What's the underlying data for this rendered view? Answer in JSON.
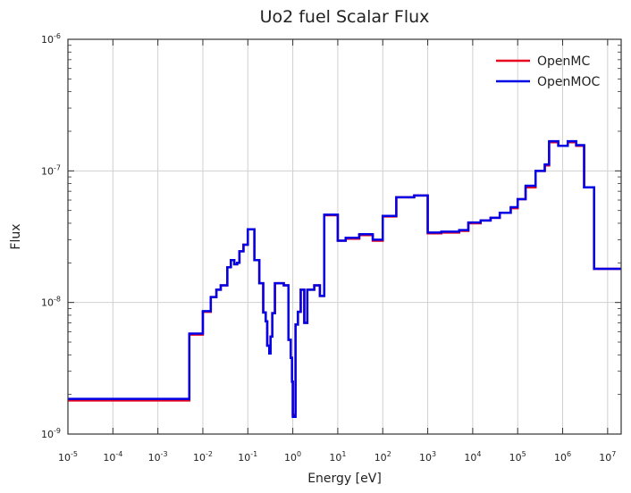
{
  "chart_data": {
    "type": "line",
    "title": "Uo2 fuel Scalar Flux",
    "xlabel": "Energy [eV]",
    "ylabel": "Flux",
    "xscale": "log",
    "yscale": "log",
    "xlim": [
      1e-05,
      20000000.0
    ],
    "ylim": [
      1e-09,
      1e-06
    ],
    "grid": true,
    "legend_position": "top-right",
    "x_ticks": [
      {
        "base": "10",
        "exp": "-5"
      },
      {
        "base": "10",
        "exp": "-4"
      },
      {
        "base": "10",
        "exp": "-3"
      },
      {
        "base": "10",
        "exp": "-2"
      },
      {
        "base": "10",
        "exp": "-1"
      },
      {
        "base": "10",
        "exp": "0"
      },
      {
        "base": "10",
        "exp": "1"
      },
      {
        "base": "10",
        "exp": "2"
      },
      {
        "base": "10",
        "exp": "3"
      },
      {
        "base": "10",
        "exp": "4"
      },
      {
        "base": "10",
        "exp": "5"
      },
      {
        "base": "10",
        "exp": "6"
      },
      {
        "base": "10",
        "exp": "7"
      }
    ],
    "y_ticks": [
      {
        "base": "10",
        "exp": "-6"
      },
      {
        "base": "10",
        "exp": "-7"
      },
      {
        "base": "10",
        "exp": "-8"
      },
      {
        "base": "10",
        "exp": "-9"
      }
    ],
    "series": [
      {
        "name": "OpenMC",
        "color": "#e8001c",
        "step": [
          [
            1e-05,
            1.8e-09
          ],
          [
            0.005,
            5.7e-09
          ],
          [
            0.01,
            8.5e-09
          ],
          [
            0.015,
            1.1e-08
          ],
          [
            0.02,
            1.25e-08
          ],
          [
            0.025,
            1.35e-08
          ],
          [
            0.035,
            1.85e-08
          ],
          [
            0.042,
            2.1e-08
          ],
          [
            0.05,
            1.95e-08
          ],
          [
            0.058,
            2e-08
          ],
          [
            0.065,
            2.45e-08
          ],
          [
            0.08,
            2.75e-08
          ],
          [
            0.1,
            3.6e-08
          ],
          [
            0.14,
            2.1e-08
          ],
          [
            0.18,
            1.4e-08
          ],
          [
            0.22,
            8.4e-09
          ],
          [
            0.25,
            7.2e-09
          ],
          [
            0.27,
            4.7e-09
          ],
          [
            0.3,
            4.1e-09
          ],
          [
            0.32,
            5.5e-09
          ],
          [
            0.35,
            8.3e-09
          ],
          [
            0.4,
            1.4e-08
          ],
          [
            0.63,
            1.35e-08
          ],
          [
            0.8,
            5.2e-09
          ],
          [
            0.9,
            3.8e-09
          ],
          [
            0.96,
            2.5e-09
          ],
          [
            1.0,
            1.4e-09
          ],
          [
            1.15,
            6.8e-09
          ],
          [
            1.3,
            8.5e-09
          ],
          [
            1.5,
            1.25e-08
          ],
          [
            1.8,
            7e-09
          ],
          [
            2.1,
            1.25e-08
          ],
          [
            3.0,
            1.35e-08
          ],
          [
            4.0,
            1.12e-08
          ],
          [
            5.0,
            4.6e-08
          ],
          [
            10,
            2.95e-08
          ],
          [
            15,
            3.05e-08
          ],
          [
            30,
            3.25e-08
          ],
          [
            60,
            2.95e-08
          ],
          [
            100,
            4.5e-08
          ],
          [
            200,
            6.3e-08
          ],
          [
            500,
            6.5e-08
          ],
          [
            1000,
            3.35e-08
          ],
          [
            2000,
            3.4e-08
          ],
          [
            5000,
            3.5e-08
          ],
          [
            8000,
            4e-08
          ],
          [
            15000,
            4.2e-08
          ],
          [
            25000,
            4.4e-08
          ],
          [
            40000,
            4.8e-08
          ],
          [
            70000,
            5.2e-08
          ],
          [
            100000,
            6.1e-08
          ],
          [
            150000,
            7.5e-08
          ],
          [
            250000,
            1e-07
          ],
          [
            400000,
            1.1e-07
          ],
          [
            500000,
            1.65e-07
          ],
          [
            800000,
            1.55e-07
          ],
          [
            1300000,
            1.65e-07
          ],
          [
            2000000,
            1.55e-07
          ],
          [
            3000000,
            7.5e-08
          ],
          [
            5000000,
            1.8e-08
          ],
          [
            20000000,
            1.8e-08
          ]
        ]
      },
      {
        "name": "OpenMOC",
        "color": "#0000e6",
        "step": [
          [
            1e-05,
            1.85e-09
          ],
          [
            0.005,
            5.8e-09
          ],
          [
            0.01,
            8.6e-09
          ],
          [
            0.015,
            1.1e-08
          ],
          [
            0.02,
            1.25e-08
          ],
          [
            0.025,
            1.35e-08
          ],
          [
            0.035,
            1.85e-08
          ],
          [
            0.042,
            2.1e-08
          ],
          [
            0.05,
            1.95e-08
          ],
          [
            0.058,
            2e-08
          ],
          [
            0.065,
            2.45e-08
          ],
          [
            0.08,
            2.75e-08
          ],
          [
            0.1,
            3.6e-08
          ],
          [
            0.14,
            2.1e-08
          ],
          [
            0.18,
            1.4e-08
          ],
          [
            0.22,
            8.4e-09
          ],
          [
            0.25,
            7.2e-09
          ],
          [
            0.27,
            4.7e-09
          ],
          [
            0.3,
            4.1e-09
          ],
          [
            0.32,
            5.5e-09
          ],
          [
            0.35,
            8.3e-09
          ],
          [
            0.4,
            1.4e-08
          ],
          [
            0.63,
            1.35e-08
          ],
          [
            0.8,
            5.2e-09
          ],
          [
            0.9,
            3.8e-09
          ],
          [
            0.96,
            2.5e-09
          ],
          [
            1.0,
            1.35e-09
          ],
          [
            1.15,
            6.8e-09
          ],
          [
            1.3,
            8.5e-09
          ],
          [
            1.5,
            1.25e-08
          ],
          [
            1.8,
            7e-09
          ],
          [
            2.1,
            1.25e-08
          ],
          [
            3.0,
            1.35e-08
          ],
          [
            4.0,
            1.12e-08
          ],
          [
            5.0,
            4.65e-08
          ],
          [
            10,
            2.95e-08
          ],
          [
            15,
            3.1e-08
          ],
          [
            30,
            3.3e-08
          ],
          [
            60,
            3e-08
          ],
          [
            100,
            4.55e-08
          ],
          [
            200,
            6.3e-08
          ],
          [
            500,
            6.5e-08
          ],
          [
            1000,
            3.4e-08
          ],
          [
            2000,
            3.45e-08
          ],
          [
            5000,
            3.55e-08
          ],
          [
            8000,
            4.05e-08
          ],
          [
            15000,
            4.2e-08
          ],
          [
            25000,
            4.4e-08
          ],
          [
            40000,
            4.8e-08
          ],
          [
            70000,
            5.3e-08
          ],
          [
            100000,
            6.1e-08
          ],
          [
            150000,
            7.7e-08
          ],
          [
            250000,
            1e-07
          ],
          [
            400000,
            1.12e-07
          ],
          [
            500000,
            1.68e-07
          ],
          [
            800000,
            1.55e-07
          ],
          [
            1300000,
            1.68e-07
          ],
          [
            2000000,
            1.57e-07
          ],
          [
            3000000,
            7.5e-08
          ],
          [
            5000000,
            1.8e-08
          ],
          [
            20000000,
            1.8e-08
          ]
        ]
      }
    ]
  }
}
